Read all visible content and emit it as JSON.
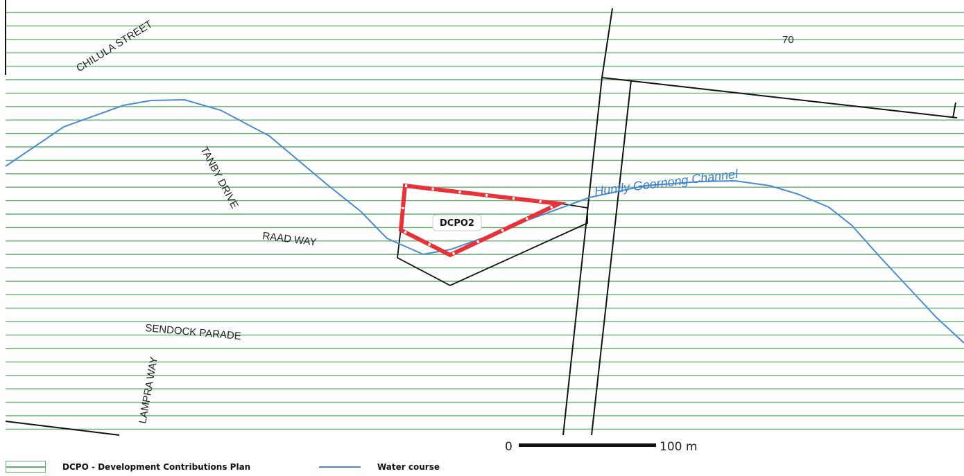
{
  "map": {
    "streets": {
      "chilula": "CHILULA STREET",
      "tanby": "TANBY DRIVE",
      "raad": "RAAD WAY",
      "sendock": "SENDOCK PARADE",
      "lampra": "LAMPRA WAY"
    },
    "channel_name": "Huntly Goornong Channel",
    "lot_number": "70",
    "zone_label": "DCPO2",
    "scale": {
      "start_label": "0",
      "end_label": "100 m"
    },
    "colors": {
      "hatch": "#5fae6e",
      "water": "#4a8bd1",
      "boundary": "#e8323a",
      "parcel": "#111111"
    }
  },
  "legend": {
    "items": [
      {
        "label": "DCPO - Development Contributions Plan",
        "icon": "green-hatch-box"
      },
      {
        "label": "Water course",
        "icon": "blue-line"
      }
    ]
  }
}
